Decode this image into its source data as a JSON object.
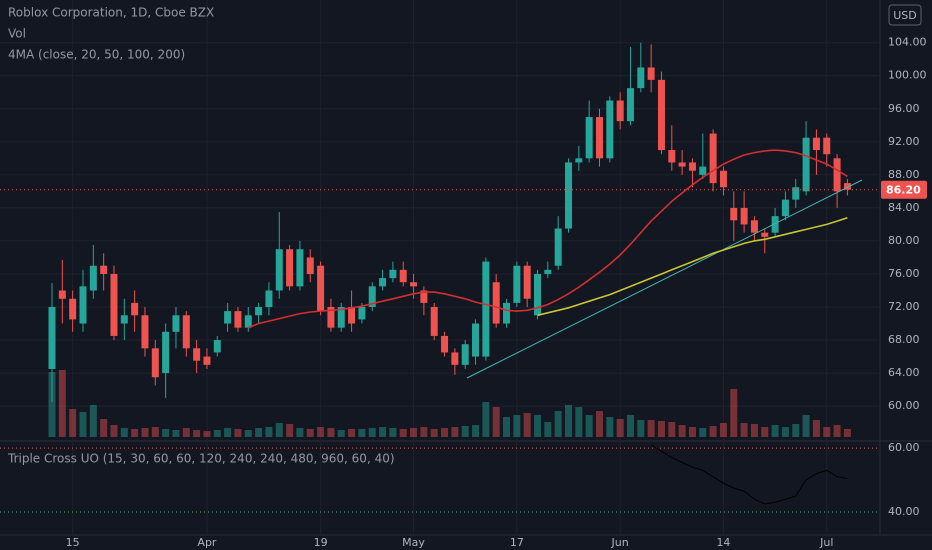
{
  "chart_data": [
    {
      "type": "candlestick",
      "title": "Roblox Corporation, 1D, Cboe BZX",
      "currency": "USD",
      "categories": [
        null,
        null,
        "15",
        null,
        null,
        null,
        null,
        null,
        null,
        null,
        null,
        null,
        null,
        null,
        null,
        "Apr",
        null,
        null,
        null,
        null,
        null,
        null,
        null,
        null,
        null,
        null,
        "19",
        null,
        null,
        null,
        null,
        null,
        null,
        null,
        null,
        "May",
        null,
        null,
        null,
        null,
        null,
        null,
        null,
        null,
        null,
        "17",
        null,
        null,
        null,
        null,
        null,
        null,
        null,
        null,
        null,
        "Jun",
        null,
        null,
        null,
        null,
        null,
        null,
        null,
        null,
        null,
        "14",
        null,
        null,
        null,
        null,
        null,
        null,
        null,
        null,
        null,
        "Jul",
        null,
        null
      ],
      "open": [
        64.5,
        74,
        73,
        70,
        74,
        77,
        76,
        70,
        72.5,
        71,
        67,
        64,
        69,
        71,
        67,
        66,
        66.5,
        70,
        71.5,
        69.5,
        71,
        72,
        74,
        79,
        74.5,
        78,
        77,
        72,
        69.5,
        72,
        70.5,
        72,
        74.5,
        75.5,
        76.5,
        75,
        74,
        72,
        68.5,
        66.5,
        65,
        66,
        66,
        75,
        70,
        72.5,
        77,
        71,
        76,
        77,
        81.5,
        89.5,
        90,
        95,
        90,
        97,
        94.5,
        98.5,
        101,
        99.5,
        91,
        89.5,
        89.5,
        88,
        93,
        88.5,
        84,
        84,
        82.5,
        81,
        81,
        83,
        85,
        86,
        92.5,
        92.5,
        90,
        87
      ],
      "high": [
        74.9,
        77.7,
        74,
        76.5,
        79.5,
        78.5,
        77,
        73,
        74,
        72,
        68,
        70,
        72,
        71.5,
        68,
        67,
        68.5,
        72.5,
        72,
        72,
        72.5,
        75,
        83.5,
        79.5,
        80,
        79,
        77.5,
        73,
        72.5,
        74,
        72.5,
        75,
        76.5,
        77.5,
        77.5,
        76,
        74.5,
        72.5,
        69,
        67,
        68,
        70.5,
        78,
        76,
        73,
        77.5,
        77.5,
        76.5,
        77.5,
        83,
        90,
        91.5,
        97,
        96,
        97.5,
        98,
        103.5,
        104,
        103.8,
        100.5,
        94,
        91,
        90,
        93,
        93.5,
        89,
        86,
        86,
        83,
        81.5,
        84,
        86,
        87.5,
        94.5,
        93.5,
        93,
        90.5,
        87.5
      ],
      "low": [
        60.5,
        70,
        69,
        69,
        73,
        74,
        68,
        68,
        69,
        66,
        62.5,
        61,
        67,
        66,
        64,
        64.5,
        66,
        69,
        69,
        69,
        70,
        71,
        73,
        74,
        74,
        75,
        71,
        69,
        69,
        69,
        70,
        71.5,
        74,
        75,
        74.5,
        73,
        71,
        68,
        66,
        63.8,
        64.5,
        65,
        65.5,
        69.5,
        69.5,
        72,
        72,
        70.5,
        75.5,
        76.5,
        81,
        88.5,
        89.5,
        89,
        89.5,
        93.5,
        94,
        98,
        98,
        90.5,
        88.5,
        88,
        86.5,
        87.5,
        86,
        85.5,
        80,
        81,
        80,
        78.5,
        80.5,
        82.5,
        84,
        85.5,
        88,
        89,
        84,
        85.5
      ],
      "close": [
        72,
        73,
        70.5,
        74.5,
        77,
        76,
        68.5,
        71,
        71,
        67,
        63.5,
        69,
        71,
        67,
        65.5,
        65,
        68,
        71.5,
        69.5,
        71,
        72,
        74,
        79,
        74.5,
        79,
        76,
        71.5,
        69.5,
        72,
        70,
        72,
        74.5,
        75.5,
        76.5,
        75,
        74.5,
        72.5,
        68.5,
        66.5,
        65,
        67.5,
        70,
        77.5,
        70,
        72.5,
        77,
        73,
        76,
        76.5,
        81.5,
        89.5,
        90,
        95,
        90,
        97,
        94.5,
        98.5,
        101,
        99.5,
        91,
        89.5,
        89,
        88.5,
        89,
        87,
        86.5,
        82.5,
        82,
        81,
        80.5,
        83,
        85,
        86.5,
        92.5,
        91,
        90.5,
        86,
        86.2
      ],
      "up_color": "#26a69a",
      "down_color": "#ef5350",
      "volume": {
        "name": "Vol",
        "values": [
          65,
          67,
          28,
          25,
          32,
          18,
          12,
          9,
          8,
          9,
          10,
          8,
          7,
          9,
          7,
          6,
          7,
          9,
          8,
          7,
          9,
          10,
          14,
          13,
          9,
          8,
          10,
          9,
          7,
          8,
          8,
          9,
          10,
          9,
          8,
          9,
          10,
          8,
          9,
          10,
          11,
          12,
          35,
          30,
          20,
          22,
          24,
          22,
          15,
          26,
          32,
          30,
          22,
          26,
          20,
          18,
          22,
          17,
          17,
          16,
          15,
          12,
          10,
          9,
          11,
          14,
          48,
          14,
          13,
          10,
          12,
          10,
          13,
          22,
          17,
          10,
          12,
          8
        ]
      },
      "indicator_name": "4MA (close, 20, 50, 100, 200)",
      "series": [
        {
          "color": "#d32f2f",
          "values": [
            null,
            null,
            null,
            null,
            null,
            null,
            null,
            null,
            null,
            null,
            null,
            null,
            null,
            null,
            null,
            null,
            null,
            null,
            null,
            69.5,
            70,
            70.3,
            70.6,
            70.9,
            71.2,
            71.4,
            71.5,
            71.6,
            71.7,
            71.9,
            72.1,
            72.4,
            72.7,
            73,
            73.3,
            73.6,
            73.8,
            73.8,
            73.6,
            73.3,
            73,
            72.6,
            72.3,
            72,
            71.6,
            71.5,
            71.6,
            71.9,
            72.3,
            72.9,
            73.6,
            74.4,
            75.3,
            76.2,
            77.2,
            78.3,
            79.6,
            81,
            82.4,
            83.6,
            84.8,
            85.8,
            86.8,
            87.7,
            88.5,
            89.3,
            89.9,
            90.4,
            90.7,
            90.9,
            91,
            90.9,
            90.7,
            90.3,
            89.8,
            89.3,
            88.6,
            87.8
          ]
        },
        {
          "color": "#c8c630",
          "values": [
            null,
            null,
            null,
            null,
            null,
            null,
            null,
            null,
            null,
            null,
            null,
            null,
            null,
            null,
            null,
            null,
            null,
            null,
            null,
            null,
            null,
            null,
            null,
            null,
            null,
            null,
            null,
            null,
            null,
            null,
            null,
            null,
            null,
            null,
            null,
            null,
            null,
            null,
            null,
            null,
            null,
            null,
            null,
            null,
            null,
            null,
            null,
            71,
            71.3,
            71.6,
            71.9,
            72.3,
            72.7,
            73.1,
            73.5,
            74,
            74.5,
            75,
            75.5,
            76,
            76.5,
            77,
            77.5,
            78,
            78.5,
            78.9,
            79.3,
            79.7,
            80,
            80.2,
            80.5,
            80.8,
            81.1,
            81.4,
            81.7,
            82,
            82.4,
            82.8
          ]
        }
      ],
      "last_price": 86.2,
      "last_price_label": "86.20",
      "ylim": [
        55.9,
        108.2
      ],
      "yticks": [
        {
          "value": 60,
          "label": "60.00"
        },
        {
          "value": 64,
          "label": "64.00"
        },
        {
          "value": 68,
          "label": "68.00"
        },
        {
          "value": 72,
          "label": "72.00"
        },
        {
          "value": 76,
          "label": "76.00"
        },
        {
          "value": 80,
          "label": "80.00"
        },
        {
          "value": 84,
          "label": "84.00"
        },
        {
          "value": 88,
          "label": "88.00"
        },
        {
          "value": 92,
          "label": "92.00"
        },
        {
          "value": 96,
          "label": "96.00"
        },
        {
          "value": 100,
          "label": "100.00"
        },
        {
          "value": 104,
          "label": "104.00"
        }
      ],
      "grid": true
    },
    {
      "type": "line",
      "title": "Triple Cross UO (15, 30, 60, 60, 120, 240, 240, 480, 960, 60, 40)",
      "series": [
        {
          "color": "#000000",
          "values": [
            null,
            null,
            null,
            null,
            null,
            null,
            null,
            null,
            null,
            null,
            null,
            null,
            null,
            null,
            null,
            null,
            null,
            null,
            null,
            null,
            null,
            null,
            null,
            null,
            null,
            null,
            null,
            null,
            null,
            null,
            null,
            null,
            null,
            null,
            null,
            null,
            null,
            null,
            null,
            null,
            null,
            null,
            null,
            null,
            null,
            null,
            null,
            null,
            null,
            null,
            null,
            null,
            null,
            null,
            null,
            null,
            null,
            null,
            61,
            59,
            57,
            55.5,
            54,
            53,
            51,
            49,
            47.5,
            46.5,
            44,
            42.5,
            43,
            44,
            45,
            50,
            52,
            53,
            51,
            50.5
          ]
        }
      ],
      "ylim": [
        32.8,
        61.9
      ],
      "yticks": [
        {
          "value": 40,
          "label": "40.00"
        },
        {
          "value": 60,
          "label": "60.00"
        }
      ],
      "tick_colors": [
        "#4caf50",
        "#ef5350"
      ]
    }
  ]
}
